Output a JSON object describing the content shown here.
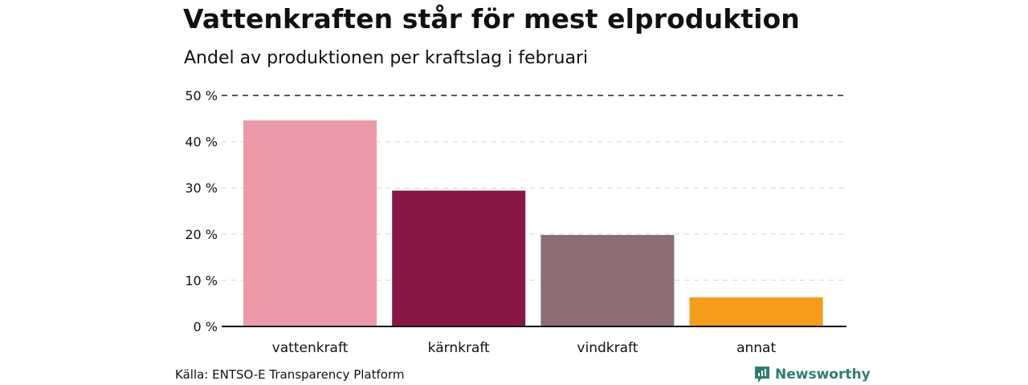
{
  "title": "Vattenkraften står för mest elproduktion",
  "subtitle": "Andel av produktionen per kraftslag i februari",
  "source": "Källa: ENTSO-E Transparency Platform",
  "brand": "Newsworthy",
  "colors": {
    "vattenkraft": "#ee99a8",
    "karnkraft": "#881745",
    "vindkraft": "#8c6e75",
    "annat": "#f59c1a",
    "brand": "#2e7d72"
  },
  "chart_data": {
    "type": "bar",
    "title": "Vattenkraften står för mest elproduktion",
    "subtitle": "Andel av produktionen per kraftslag i februari",
    "categories": [
      "vattenkraft",
      "kärnkraft",
      "vindkraft",
      "annat"
    ],
    "values": [
      44.6,
      29.4,
      19.8,
      6.3
    ],
    "unit": "%",
    "ylim": [
      0,
      50
    ],
    "yticks": [
      0,
      10,
      20,
      30,
      40,
      50
    ],
    "ytick_labels": [
      "0 %",
      "10 %",
      "20 %",
      "30 %",
      "40 %",
      "50 %"
    ],
    "xlabel": "",
    "ylabel": "",
    "grid": true
  }
}
